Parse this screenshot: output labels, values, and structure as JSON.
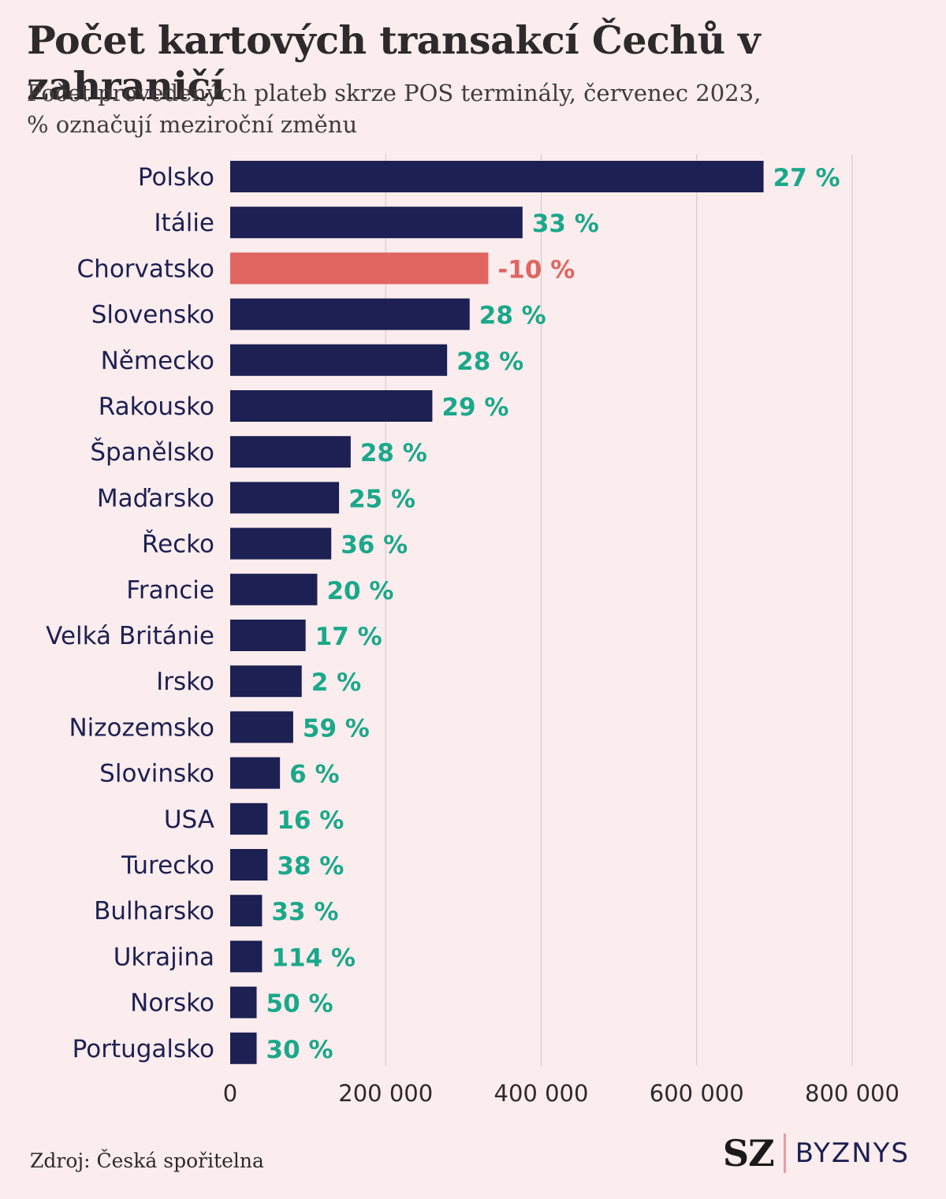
{
  "header": {
    "title": "Počet kartových transakcí Čechů v zahraničí",
    "subtitle_line1": "Počet provedených plateb skrze POS terminály, červenec 2023,",
    "subtitle_line2": "% označují meziroční změnu"
  },
  "footer": {
    "source": "Zdroj: Česká spořitelna",
    "brand_sz": "SZ",
    "brand_section": "BYZNYS"
  },
  "colors": {
    "background": "#fbeced",
    "bar": "#1c2052",
    "bar_highlight": "#e06561",
    "label_positive": "#1aa88a",
    "label_negative": "#e06561",
    "grid": "#cfc6c8",
    "category_text": "#1c2052"
  },
  "chart_data": {
    "type": "bar",
    "orientation": "horizontal",
    "title": "Počet kartových transakcí Čechů v zahraničí",
    "xlim": [
      0,
      800000
    ],
    "xticks": [
      0,
      200000,
      400000,
      600000,
      800000
    ],
    "xtick_labels": [
      "0",
      "200 000",
      "400 000",
      "600 000",
      "800 000"
    ],
    "grid": true,
    "categories": [
      "Polsko",
      "Itálie",
      "Chorvatsko",
      "Slovensko",
      "Německo",
      "Rakousko",
      "Španělsko",
      "Maďarsko",
      "Řecko",
      "Francie",
      "Velká Británie",
      "Irsko",
      "Nizozemsko",
      "Slovinsko",
      "USA",
      "Turecko",
      "Bulharsko",
      "Ukrajina",
      "Norsko",
      "Portugalsko"
    ],
    "values": [
      686000,
      376000,
      332000,
      308000,
      279000,
      260000,
      155000,
      140000,
      130000,
      112000,
      97000,
      92000,
      81000,
      64000,
      48000,
      48000,
      41000,
      41000,
      34000,
      34000
    ],
    "changes": [
      "27 %",
      "33 %",
      "-10 %",
      "28 %",
      "28 %",
      "29 %",
      "28 %",
      "25 %",
      "36 %",
      "20 %",
      "17 %",
      "2 %",
      "59 %",
      "6 %",
      "16 %",
      "38 %",
      "33 %",
      "114 %",
      "50 %",
      "30 %"
    ],
    "highlight": "Chorvatsko"
  }
}
